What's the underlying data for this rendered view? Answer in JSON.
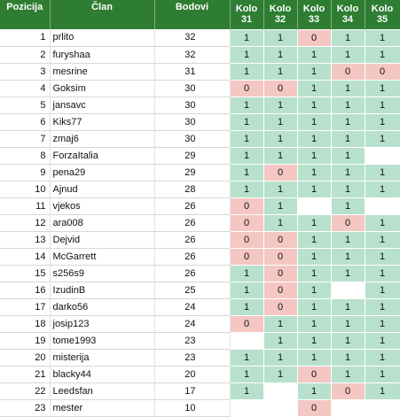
{
  "headers": {
    "pozicija": "Pozicija",
    "clan": "Član",
    "bodovi": "Bodovi",
    "kola": [
      "Kolo 31",
      "Kolo 32",
      "Kolo 33",
      "Kolo 34",
      "Kolo 35"
    ]
  },
  "colors": {
    "header_bg": "#2e7d32",
    "win": "#b7e1cd",
    "loss": "#f4c7c3"
  },
  "rows": [
    {
      "pos": "1",
      "name": "prlito",
      "pts": "32",
      "k": [
        "1",
        "1",
        "0",
        "1",
        "1"
      ]
    },
    {
      "pos": "2",
      "name": "furyshaa",
      "pts": "32",
      "k": [
        "1",
        "1",
        "1",
        "1",
        "1"
      ]
    },
    {
      "pos": "3",
      "name": "mesrine",
      "pts": "31",
      "k": [
        "1",
        "1",
        "1",
        "0",
        "0"
      ]
    },
    {
      "pos": "4",
      "name": "Goksim",
      "pts": "30",
      "k": [
        "0",
        "0",
        "1",
        "1",
        "1"
      ]
    },
    {
      "pos": "5",
      "name": "jansavc",
      "pts": "30",
      "k": [
        "1",
        "1",
        "1",
        "1",
        "1"
      ]
    },
    {
      "pos": "6",
      "name": "Kiks77",
      "pts": "30",
      "k": [
        "1",
        "1",
        "1",
        "1",
        "1"
      ]
    },
    {
      "pos": "7",
      "name": "zmaj6",
      "pts": "30",
      "k": [
        "1",
        "1",
        "1",
        "1",
        "1"
      ]
    },
    {
      "pos": "8",
      "name": "ForzaItalia",
      "pts": "29",
      "k": [
        "1",
        "1",
        "1",
        "1",
        ""
      ]
    },
    {
      "pos": "9",
      "name": "pena29",
      "pts": "29",
      "k": [
        "1",
        "0",
        "1",
        "1",
        "1"
      ]
    },
    {
      "pos": "10",
      "name": "Ajnud",
      "pts": "28",
      "k": [
        "1",
        "1",
        "1",
        "1",
        "1"
      ]
    },
    {
      "pos": "11",
      "name": "vjekos",
      "pts": "26",
      "k": [
        "0",
        "1",
        "",
        "1",
        ""
      ]
    },
    {
      "pos": "12",
      "name": "ara008",
      "pts": "26",
      "k": [
        "0",
        "1",
        "1",
        "0",
        "1"
      ]
    },
    {
      "pos": "13",
      "name": "Dejvid",
      "pts": "26",
      "k": [
        "0",
        "0",
        "1",
        "1",
        "1"
      ]
    },
    {
      "pos": "14",
      "name": "McGarrett",
      "pts": "26",
      "k": [
        "0",
        "0",
        "1",
        "1",
        "1"
      ]
    },
    {
      "pos": "15",
      "name": "s256s9",
      "pts": "26",
      "k": [
        "1",
        "0",
        "1",
        "1",
        "1"
      ]
    },
    {
      "pos": "16",
      "name": "IzudinB",
      "pts": "25",
      "k": [
        "1",
        "0",
        "1",
        "",
        "1"
      ]
    },
    {
      "pos": "17",
      "name": "darko56",
      "pts": "24",
      "k": [
        "1",
        "0",
        "1",
        "1",
        "1"
      ]
    },
    {
      "pos": "18",
      "name": "josip123",
      "pts": "24",
      "k": [
        "0",
        "1",
        "1",
        "1",
        "1"
      ]
    },
    {
      "pos": "19",
      "name": "tome1993",
      "pts": "23",
      "k": [
        "",
        "1",
        "1",
        "1",
        "1"
      ]
    },
    {
      "pos": "20",
      "name": "misterija",
      "pts": "23",
      "k": [
        "1",
        "1",
        "1",
        "1",
        "1"
      ]
    },
    {
      "pos": "21",
      "name": "blacky44",
      "pts": "20",
      "k": [
        "1",
        "1",
        "0",
        "1",
        "1"
      ]
    },
    {
      "pos": "22",
      "name": "Leedsfan",
      "pts": "17",
      "k": [
        "1",
        "",
        "1",
        "0",
        "1"
      ]
    },
    {
      "pos": "23",
      "name": "mester",
      "pts": "10",
      "k": [
        "",
        "",
        "0",
        "",
        ""
      ]
    }
  ]
}
